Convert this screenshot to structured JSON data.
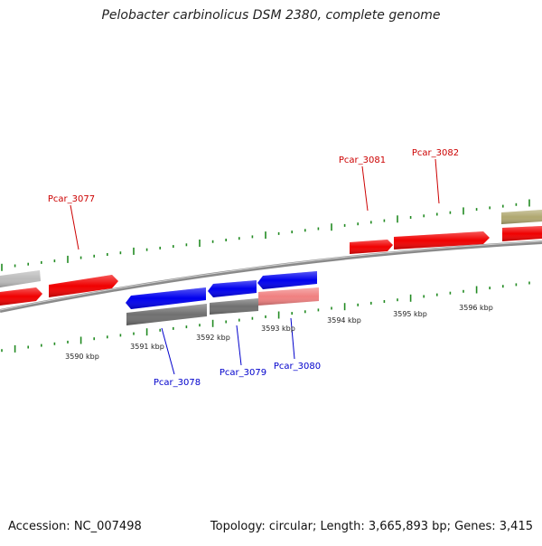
{
  "title": "Pelobacter carbinolicus DSM 2380, complete genome",
  "accession": "Accession: NC_007498",
  "summary": "Topology: circular; Length: 3,665,893 bp; Genes: 3,415",
  "colors": {
    "forward_label": "#cc0000",
    "reverse_label": "#0000cc",
    "red": "#f00000",
    "blue": "#0000ee",
    "gray_gene": "#707070",
    "light_gray": "#bbbbbb",
    "pink": "#f08080",
    "khaki": "#b0a870",
    "tick_green": "#228b22"
  },
  "ruler": [
    {
      "label": "3590 kbp"
    },
    {
      "label": "3591 kbp"
    },
    {
      "label": "3592 kbp"
    },
    {
      "label": "3593 kbp"
    },
    {
      "label": "3594 kbp"
    },
    {
      "label": "3595 kbp"
    },
    {
      "label": "3596 kbp"
    }
  ],
  "gene_labels": [
    {
      "text": "Pcar_3077",
      "strand": "forward"
    },
    {
      "text": "Pcar_3081",
      "strand": "forward"
    },
    {
      "text": "Pcar_3082",
      "strand": "forward"
    },
    {
      "text": "Pcar_3078",
      "strand": "reverse"
    },
    {
      "text": "Pcar_3079",
      "strand": "reverse"
    },
    {
      "text": "Pcar_3080",
      "strand": "reverse"
    }
  ]
}
